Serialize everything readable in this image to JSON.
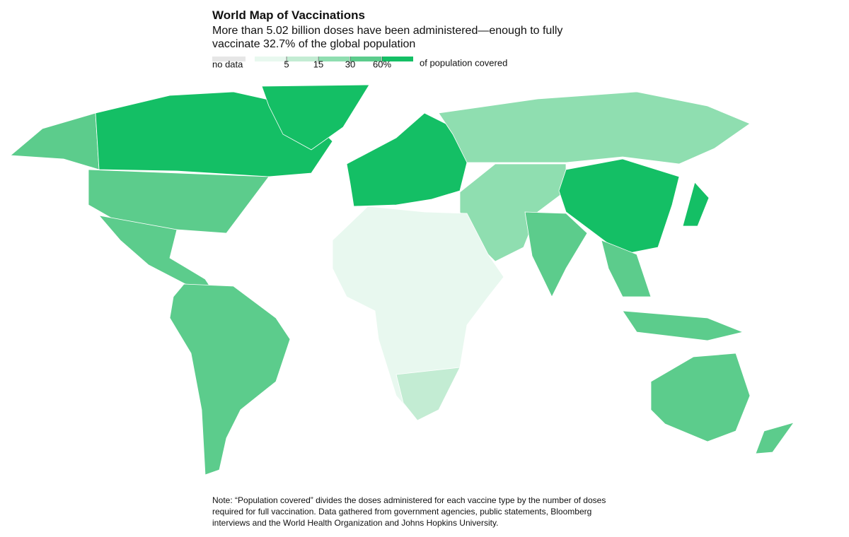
{
  "title": "World Map of Vaccinations",
  "subtitle": "More than 5.02 billion doses have been administered—enough to fully vaccinate 32.7% of the global population",
  "legend": {
    "no_data": "no data",
    "no_data_color": "#e6e6e6",
    "colors": [
      "#e8f8ef",
      "#c3ecd3",
      "#8fdeb0",
      "#5ccc8c",
      "#14bf65"
    ],
    "ticks": [
      5,
      15,
      30,
      {
        "value": 60,
        "label": "60%"
      }
    ],
    "unit": "of population covered"
  },
  "note": "Note: “Population covered” divides the doses administered for each vaccine type by the number of doses required for full vaccination. Data gathered from government agencies, public statements, Bloomberg interviews and the World Health Organization and Johns Hopkins University."
}
